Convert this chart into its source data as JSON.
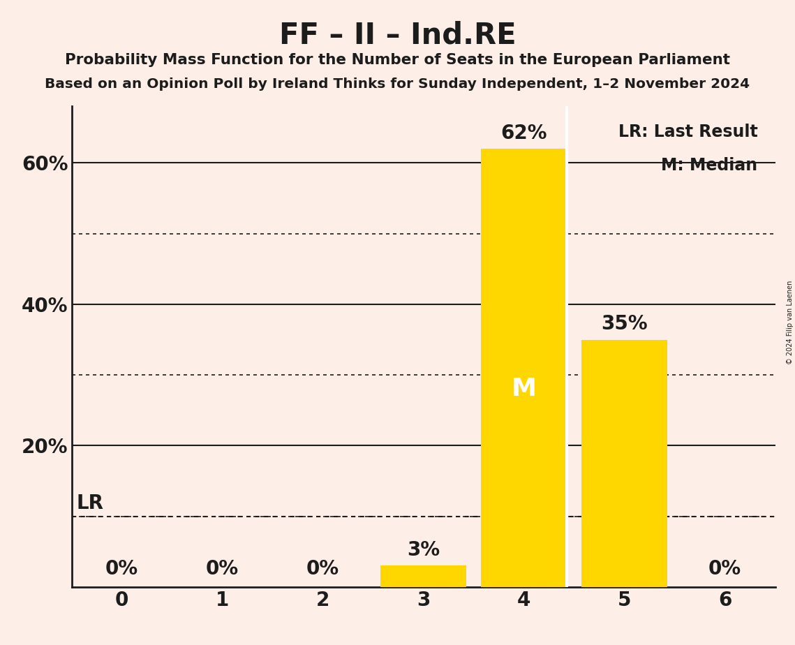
{
  "title": "FF – II – Ind.RE",
  "subtitle1": "Probability Mass Function for the Number of Seats in the European Parliament",
  "subtitle2": "Based on an Opinion Poll by Ireland Thinks for Sunday Independent, 1–2 November 2024",
  "copyright": "© 2024 Filip van Laenen",
  "categories": [
    0,
    1,
    2,
    3,
    4,
    5,
    6
  ],
  "values": [
    0,
    0,
    0,
    3,
    62,
    35,
    0
  ],
  "bar_color": "#FFD700",
  "background_color": "#FDEEE8",
  "text_color": "#1C1C1C",
  "median_seat": 4,
  "median_label": "M",
  "last_result_value": 10,
  "lr_label": "LR",
  "legend_lr": "LR: Last Result",
  "legend_m": "M: Median",
  "yticks_solid": [
    20,
    40,
    60
  ],
  "yticks_dotted": [
    10,
    30,
    50
  ],
  "ylim": [
    0,
    68
  ],
  "xlim": [
    -0.5,
    6.5
  ],
  "bar_width": 0.85
}
